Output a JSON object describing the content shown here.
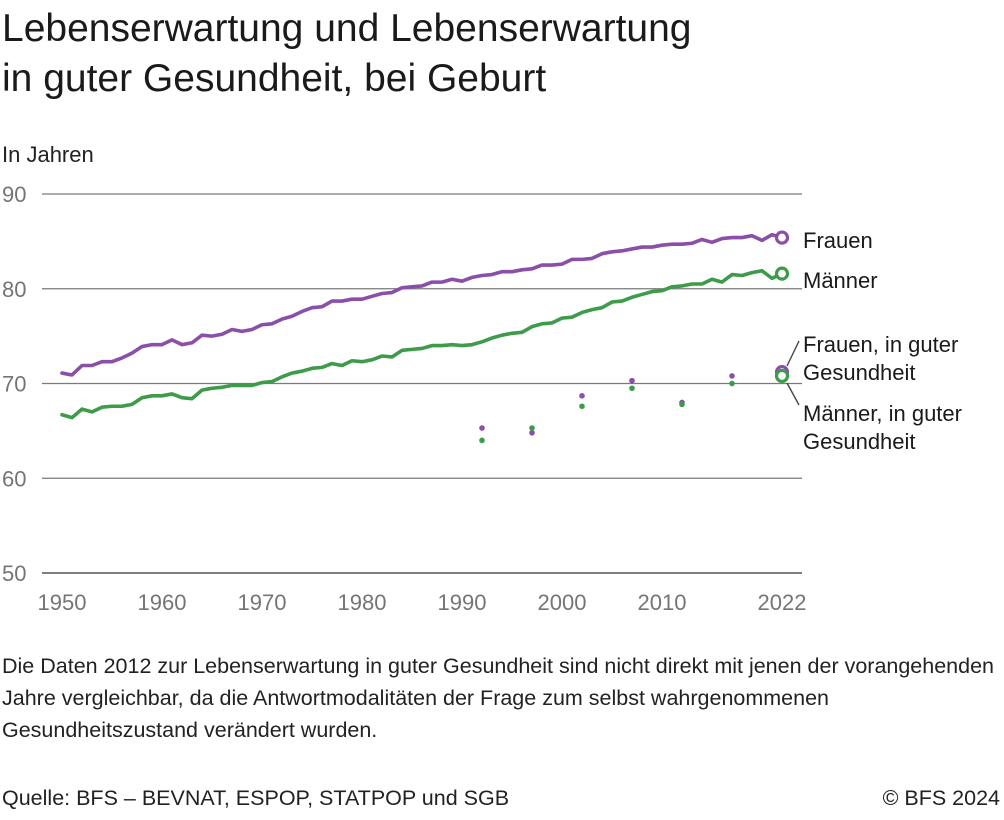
{
  "title_lines": [
    "Lebenserwartung und Lebenserwartung",
    "in guter Gesundheit, bei Geburt"
  ],
  "note": "Die Daten 2012 zur Lebenserwartung in guter Gesundheit sind nicht direkt mit jenen der vorangehenden Jahre vergleichbar, da die Antwortmodalitäten der Frage zum selbst wahrgenommenen Gesundheitszustand verändert wurden.",
  "source": "Quelle: BFS – BEVNAT, ESPOP, STATPOP und SGB",
  "copyright": "© BFS 2024",
  "colors": {
    "frauen": "#8a4fa8",
    "maenner": "#3d9b4a",
    "grid": "#7a7a7a",
    "tick": "#757575"
  },
  "chart_data": {
    "type": "line",
    "ylabel": "In Jahren",
    "xlim": [
      1950,
      2022
    ],
    "ylim": [
      50,
      90
    ],
    "x_ticks": [
      "1950",
      "1960",
      "1970",
      "1980",
      "1990",
      "2000",
      "2010",
      "2022"
    ],
    "y_ticks": [
      "90",
      "80",
      "70",
      "60",
      "50"
    ],
    "grid": true,
    "series": [
      {
        "name": "Frauen",
        "label_lines": [
          "Frauen"
        ],
        "x": [
          1950,
          1951,
          1952,
          1953,
          1954,
          1955,
          1956,
          1957,
          1958,
          1959,
          1960,
          1961,
          1962,
          1963,
          1964,
          1965,
          1966,
          1967,
          1968,
          1969,
          1970,
          1971,
          1972,
          1973,
          1974,
          1975,
          1976,
          1977,
          1978,
          1979,
          1980,
          1981,
          1982,
          1983,
          1984,
          1985,
          1986,
          1987,
          1988,
          1989,
          1990,
          1991,
          1992,
          1993,
          1994,
          1995,
          1996,
          1997,
          1998,
          1999,
          2000,
          2001,
          2002,
          2003,
          2004,
          2005,
          2006,
          2007,
          2008,
          2009,
          2010,
          2011,
          2012,
          2013,
          2014,
          2015,
          2016,
          2017,
          2018,
          2019,
          2020,
          2021,
          2022
        ],
        "values": [
          71.1,
          70.9,
          71.9,
          71.9,
          72.3,
          72.3,
          72.7,
          73.2,
          73.9,
          74.1,
          74.1,
          74.6,
          74.1,
          74.3,
          75.1,
          75.0,
          75.2,
          75.7,
          75.5,
          75.7,
          76.2,
          76.3,
          76.8,
          77.1,
          77.6,
          78.0,
          78.1,
          78.7,
          78.7,
          78.9,
          78.9,
          79.2,
          79.5,
          79.6,
          80.1,
          80.2,
          80.3,
          80.7,
          80.7,
          81.0,
          80.8,
          81.2,
          81.4,
          81.5,
          81.8,
          81.8,
          82.0,
          82.1,
          82.5,
          82.5,
          82.6,
          83.1,
          83.1,
          83.2,
          83.7,
          83.9,
          84.0,
          84.2,
          84.4,
          84.4,
          84.6,
          84.7,
          84.7,
          84.8,
          85.2,
          84.9,
          85.3,
          85.4,
          85.4,
          85.6,
          85.1,
          85.7,
          85.4
        ]
      },
      {
        "name": "Männer",
        "label_lines": [
          "Männer"
        ],
        "x": [
          1950,
          1951,
          1952,
          1953,
          1954,
          1955,
          1956,
          1957,
          1958,
          1959,
          1960,
          1961,
          1962,
          1963,
          1964,
          1965,
          1966,
          1967,
          1968,
          1969,
          1970,
          1971,
          1972,
          1973,
          1974,
          1975,
          1976,
          1977,
          1978,
          1979,
          1980,
          1981,
          1982,
          1983,
          1984,
          1985,
          1986,
          1987,
          1988,
          1989,
          1990,
          1991,
          1992,
          1993,
          1994,
          1995,
          1996,
          1997,
          1998,
          1999,
          2000,
          2001,
          2002,
          2003,
          2004,
          2005,
          2006,
          2007,
          2008,
          2009,
          2010,
          2011,
          2012,
          2013,
          2014,
          2015,
          2016,
          2017,
          2018,
          2019,
          2020,
          2021,
          2022
        ],
        "values": [
          66.7,
          66.4,
          67.3,
          67.0,
          67.5,
          67.6,
          67.6,
          67.8,
          68.5,
          68.7,
          68.7,
          68.9,
          68.5,
          68.4,
          69.3,
          69.5,
          69.6,
          69.8,
          69.8,
          69.8,
          70.1,
          70.2,
          70.7,
          71.1,
          71.3,
          71.6,
          71.7,
          72.1,
          71.9,
          72.4,
          72.3,
          72.5,
          72.9,
          72.8,
          73.5,
          73.6,
          73.7,
          74.0,
          74.0,
          74.1,
          74.0,
          74.1,
          74.4,
          74.8,
          75.1,
          75.3,
          75.4,
          76.0,
          76.3,
          76.4,
          76.9,
          77.0,
          77.5,
          77.8,
          78.0,
          78.6,
          78.7,
          79.1,
          79.4,
          79.7,
          79.8,
          80.2,
          80.3,
          80.5,
          80.5,
          81.0,
          80.7,
          81.5,
          81.4,
          81.7,
          81.9,
          81.1,
          81.6
        ]
      },
      {
        "name": "Frauen, in guter Gesundheit",
        "label_lines": [
          "Frauen, in guter",
          "Gesundheit"
        ],
        "style": "points",
        "x": [
          1992,
          1997,
          2002,
          2007,
          2012,
          2017,
          2022
        ],
        "values": [
          65.3,
          64.8,
          68.7,
          70.3,
          68.0,
          70.8,
          71.2
        ]
      },
      {
        "name": "Männer, in guter Gesundheit",
        "label_lines": [
          "Männer, in guter",
          "Gesundheit"
        ],
        "style": "points",
        "x": [
          1992,
          1997,
          2002,
          2007,
          2012,
          2017,
          2022
        ],
        "values": [
          64.0,
          65.3,
          67.6,
          69.5,
          67.8,
          70.0,
          70.8
        ]
      }
    ]
  }
}
